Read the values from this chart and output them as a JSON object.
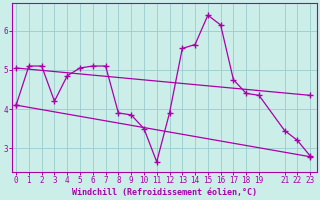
{
  "xlabel": "Windchill (Refroidissement éolien,°C)",
  "line_color": "#aa00aa",
  "bg_color": "#cceee8",
  "grid_color": "#99cccc",
  "lines": [
    {
      "x": [
        0,
        1,
        2,
        3,
        4,
        5,
        6,
        7,
        8,
        9,
        10,
        11,
        12,
        13,
        14,
        15,
        16,
        17,
        18,
        19,
        21,
        22,
        23
      ],
      "y": [
        4.1,
        5.1,
        5.1,
        4.2,
        4.85,
        5.05,
        5.1,
        5.1,
        3.9,
        3.85,
        3.5,
        2.65,
        3.9,
        5.55,
        5.65,
        6.4,
        6.15,
        4.75,
        4.4,
        4.35,
        3.45,
        3.2,
        2.8
      ]
    },
    {
      "x": [
        0,
        1,
        2,
        3,
        5,
        6,
        11,
        12,
        16,
        17,
        19,
        21,
        22,
        23
      ],
      "y": [
        5.05,
        5.1,
        5.1,
        4.85,
        5.05,
        5.1,
        4.75,
        4.65,
        4.35,
        4.35,
        4.35,
        4.1,
        4.0,
        3.95
      ]
    },
    {
      "x": [
        0,
        1,
        3,
        7,
        8,
        9,
        10,
        11,
        12,
        13,
        16,
        19,
        21,
        22,
        23
      ],
      "y": [
        4.1,
        5.1,
        4.2,
        5.1,
        3.9,
        3.85,
        3.5,
        2.65,
        3.9,
        5.55,
        6.15,
        4.35,
        3.45,
        3.2,
        2.8
      ]
    }
  ],
  "trend_lines": [
    {
      "x": [
        0,
        23
      ],
      "y": [
        5.05,
        4.35
      ]
    },
    {
      "x": [
        0,
        23
      ],
      "y": [
        4.1,
        2.78
      ]
    }
  ],
  "xlim": [
    -0.3,
    23.5
  ],
  "ylim": [
    2.4,
    6.7
  ],
  "xticks": [
    0,
    1,
    2,
    3,
    4,
    5,
    6,
    7,
    8,
    9,
    10,
    11,
    12,
    13,
    14,
    15,
    16,
    17,
    18,
    19,
    21,
    22,
    23
  ],
  "yticks": [
    3,
    4,
    5,
    6
  ],
  "tick_fontsize": 5.5,
  "label_fontsize": 6.0
}
